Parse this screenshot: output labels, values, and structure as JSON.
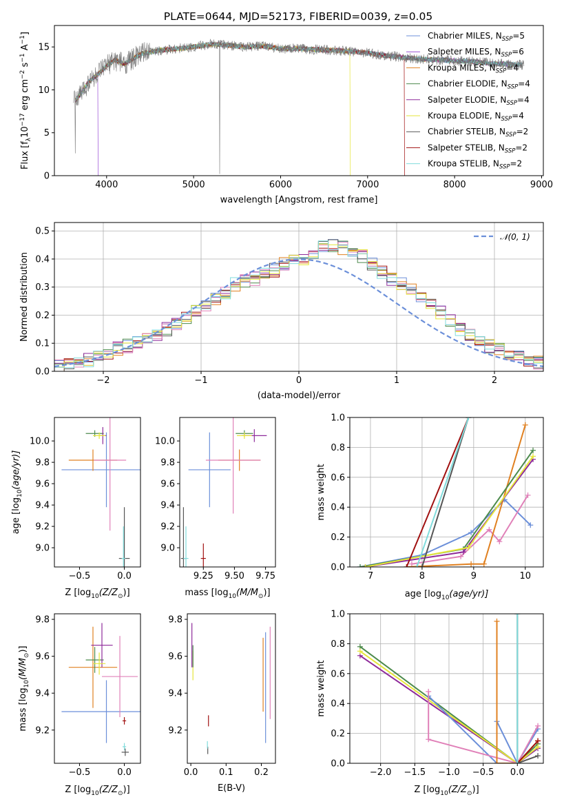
{
  "title": "PLATE=0644, MJD=52173, FIBERID=0039, z=0.05",
  "colors": {
    "Chabrier MILES": "#6b8fd9",
    "Salpeter MILES": "#9a4fd6",
    "Kroupa MILES": "#e08020",
    "Chabrier ELODIE": "#4c8a4c",
    "Salpeter ELODIE": "#8e2a9a",
    "Kroupa ELODIE": "#e6e63a",
    "Chabrier STELIB": "#555555",
    "Salpeter STELIB": "#a01010",
    "Kroupa STELIB": "#80dcdc",
    "pink": "#e080b8",
    "normal": "#6b8fd9"
  },
  "chart_data": [
    {
      "type": "line",
      "title": "PLATE=0644, MJD=52173, FIBERID=0039, z=0.05",
      "xlabel": "wavelength [Angstrom, rest frame]",
      "ylabel": "Flux [f",
      "ylabel_parts": [
        "Flux [f",
        "λ",
        "10",
        "−17",
        " erg cm",
        "−2",
        " s",
        "−1",
        " A",
        "−1",
        "]"
      ],
      "xlim": [
        3400,
        9020
      ],
      "ylim": [
        0,
        17.5
      ],
      "xticks": [
        4000,
        5000,
        6000,
        7000,
        8000,
        9000
      ],
      "yticks": [
        0,
        5,
        10,
        15
      ],
      "legend_position": "upper right",
      "legend": [
        {
          "name": "Chabrier MILES",
          "nssp": "5"
        },
        {
          "name": "Salpeter MILES",
          "nssp": "6"
        },
        {
          "name": "Kroupa MILES",
          "nssp": "4"
        },
        {
          "name": "Chabrier ELODIE",
          "nssp": "4"
        },
        {
          "name": "Salpeter ELODIE",
          "nssp": "4"
        },
        {
          "name": "Kroupa ELODIE",
          "nssp": "4"
        },
        {
          "name": "Chabrier STELIB",
          "nssp": "2"
        },
        {
          "name": "Salpeter STELIB",
          "nssp": "2"
        },
        {
          "name": "Kroupa STELIB",
          "nssp": "2"
        }
      ],
      "data_spectrum": {
        "x": [
          3620,
          3700,
          3800,
          3900,
          4000,
          4100,
          4200,
          4300,
          4400,
          4600,
          4800,
          5000,
          5200,
          5400,
          5600,
          5800,
          6000,
          6200,
          6400,
          6600,
          6800,
          7000,
          7200,
          7400,
          7600,
          7800,
          8000,
          8200,
          8400,
          8600,
          8800
        ],
        "y": [
          8.5,
          9.5,
          11.0,
          11.8,
          12.8,
          13.5,
          13.0,
          13.6,
          14.2,
          14.6,
          14.8,
          15.0,
          15.3,
          15.2,
          15.0,
          15.1,
          14.8,
          14.8,
          14.7,
          14.6,
          14.5,
          14.3,
          14.0,
          13.8,
          13.6,
          13.5,
          13.4,
          13.3,
          13.1,
          13.0,
          12.9
        ]
      },
      "model_cutoffs": [
        {
          "series": "Salpeter MILES",
          "x": 3900
        },
        {
          "series": "Kroupa ELODIE",
          "x": 6800
        },
        {
          "series": "Salpeter STELIB",
          "x": 7420
        }
      ]
    },
    {
      "type": "step",
      "xlabel": "(data-model)/error",
      "ylabel": "Normed distribution",
      "xlim": [
        -2.5,
        2.5
      ],
      "ylim": [
        0,
        0.53
      ],
      "xticks": [
        -2,
        -1,
        0,
        1,
        2
      ],
      "yticks": [
        0.0,
        0.1,
        0.2,
        0.3,
        0.4,
        0.5
      ],
      "grid": true,
      "legend": [
        "𝒩(0, 1)"
      ],
      "legend_position": "upper right",
      "bin_width": 0.1,
      "bins_start": -2.5,
      "histogram_base": [
        0.02,
        0.03,
        0.03,
        0.04,
        0.05,
        0.06,
        0.08,
        0.09,
        0.1,
        0.12,
        0.13,
        0.15,
        0.17,
        0.19,
        0.21,
        0.23,
        0.26,
        0.28,
        0.31,
        0.32,
        0.33,
        0.35,
        0.36,
        0.38,
        0.39,
        0.4,
        0.42,
        0.44,
        0.45,
        0.44,
        0.43,
        0.41,
        0.38,
        0.35,
        0.33,
        0.31,
        0.29,
        0.27,
        0.24,
        0.21,
        0.18,
        0.15,
        0.13,
        0.11,
        0.09,
        0.08,
        0.06,
        0.05,
        0.04,
        0.03
      ],
      "series_colors": [
        "#6b8fd9",
        "#e08020",
        "#4c8a4c",
        "#a01010",
        "#8e2a9a",
        "#555555",
        "#e080b8",
        "#e6e63a",
        "#80dcdc"
      ]
    },
    {
      "type": "errorbar",
      "xlabel": "Z [log",
      "xlabel_parts": [
        "Z [log",
        "10",
        "(Z/Z",
        "⊙",
        ")]"
      ],
      "ylabel_parts": [
        "age  [log",
        "10",
        "(age/yr)]"
      ],
      "xlim": [
        -0.78,
        0.18
      ],
      "ylim": [
        8.82,
        10.22
      ],
      "xticks": [
        -0.5,
        0.0
      ],
      "yticks": [
        9.0,
        9.2,
        9.4,
        9.6,
        9.8,
        10.0
      ],
      "points": [
        {
          "c": "#6b8fd9",
          "x": -0.2,
          "y": 9.73,
          "xe": 0.5,
          "ye": 0.35
        },
        {
          "c": "#e08020",
          "x": -0.35,
          "y": 9.82,
          "xe": 0.27,
          "ye": 0.1
        },
        {
          "c": "#e080b8",
          "x": -0.16,
          "y": 9.82,
          "xe": 0.18,
          "ye": 0.66
        },
        {
          "c": "#4c8a4c",
          "x": -0.33,
          "y": 10.07,
          "xe": 0.1,
          "ye": 0.03
        },
        {
          "c": "#8e2a9a",
          "x": -0.24,
          "y": 10.05,
          "xe": 0.04,
          "ye": 0.08
        },
        {
          "c": "#e6e63a",
          "x": -0.28,
          "y": 10.05,
          "xe": 0.07,
          "ye": 0.03
        },
        {
          "c": "#555555",
          "x": 0.0,
          "y": 8.9,
          "xe": 0.06,
          "ye": 0.48
        },
        {
          "c": "#80dcdc",
          "x": -0.01,
          "y": 8.9,
          "xe": 0.02,
          "ye": 0.3
        }
      ]
    },
    {
      "type": "errorbar",
      "xlabel_parts": [
        "mass [log",
        "10",
        "(M/M",
        "⊙",
        ")]"
      ],
      "xlim": [
        9.06,
        9.83
      ],
      "ylim": [
        8.82,
        10.22
      ],
      "xticks": [
        9.25,
        9.5,
        9.75
      ],
      "xticklabels": [
        "9.25",
        "9.50",
        "9.75"
      ],
      "yticks": [
        9.0,
        9.2,
        9.4,
        9.6,
        9.8,
        10.0
      ],
      "points": [
        {
          "c": "#6b8fd9",
          "x": 9.3,
          "y": 9.73,
          "xe": 0.17,
          "ye": 0.35
        },
        {
          "c": "#e08020",
          "x": 9.54,
          "y": 9.82,
          "xe": 0.17,
          "ye": 0.1
        },
        {
          "c": "#e080b8",
          "x": 9.49,
          "y": 9.82,
          "xe": 0.22,
          "ye": 0.5
        },
        {
          "c": "#4c8a4c",
          "x": 9.58,
          "y": 10.07,
          "xe": 0.07,
          "ye": 0.03
        },
        {
          "c": "#8e2a9a",
          "x": 9.66,
          "y": 10.05,
          "xe": 0.1,
          "ye": 0.06
        },
        {
          "c": "#e6e63a",
          "x": 9.58,
          "y": 10.05,
          "xe": 0.06,
          "ye": 0.03
        },
        {
          "c": "#555555",
          "x": 9.09,
          "y": 8.9,
          "xe": 0.02,
          "ye": 0.48
        },
        {
          "c": "#80dcdc",
          "x": 9.11,
          "y": 8.9,
          "xe": 0.02,
          "ye": 0.3
        },
        {
          "c": "#a01010",
          "x": 9.25,
          "y": 8.9,
          "xe": 0.02,
          "ye": 0.14
        }
      ]
    },
    {
      "type": "line",
      "xlabel_parts": [
        "age  [log",
        "10",
        "(age/yr)]"
      ],
      "ylabel": "mass weight",
      "xlim": [
        6.6,
        10.35
      ],
      "ylim": [
        0,
        1
      ],
      "xticks": [
        7,
        8,
        9,
        10
      ],
      "yticks": [
        0.0,
        0.2,
        0.4,
        0.6,
        0.8,
        1.0
      ],
      "grid": true,
      "series": [
        {
          "c": "#6b8fd9",
          "x": [
            6.8,
            8.0,
            8.95,
            9.6,
            10.1
          ],
          "y": [
            0.0,
            0.08,
            0.23,
            0.45,
            0.28
          ]
        },
        {
          "c": "#e080b8",
          "x": [
            7.8,
            8.75,
            9.3,
            9.5,
            10.05
          ],
          "y": [
            0.02,
            0.07,
            0.25,
            0.17,
            0.48
          ]
        },
        {
          "c": "#e08020",
          "x": [
            7.7,
            8.95,
            9.2,
            10.0
          ],
          "y": [
            0.0,
            0.02,
            0.02,
            0.95
          ]
        },
        {
          "c": "#4c8a4c",
          "x": [
            6.8,
            8.8,
            10.15
          ],
          "y": [
            0.0,
            0.12,
            0.78
          ]
        },
        {
          "c": "#8e2a9a",
          "x": [
            6.9,
            8.8,
            10.15
          ],
          "y": [
            0.0,
            0.1,
            0.72
          ]
        },
        {
          "c": "#e6e63a",
          "x": [
            6.9,
            8.9,
            10.15
          ],
          "y": [
            0.0,
            0.13,
            0.74
          ]
        },
        {
          "c": "#a01010",
          "x": [
            7.7,
            8.9
          ],
          "y": [
            0.0,
            1.0
          ]
        },
        {
          "c": "#555555",
          "x": [
            8.0,
            8.9
          ],
          "y": [
            0.0,
            1.0
          ]
        },
        {
          "c": "#80dcdc",
          "x": [
            7.9,
            8.9
          ],
          "y": [
            0.0,
            1.0
          ]
        }
      ]
    },
    {
      "type": "errorbar",
      "xlabel_parts": [
        "Z [log",
        "10",
        "(Z/Z",
        "⊙",
        ")]"
      ],
      "ylabel_parts": [
        "mass [log",
        "10",
        "(M/M",
        "⊙",
        ")]"
      ],
      "xlim": [
        -0.78,
        0.18
      ],
      "ylim": [
        9.02,
        9.83
      ],
      "xticks": [
        -0.5,
        0.0
      ],
      "yticks": [
        9.2,
        9.4,
        9.6,
        9.8
      ],
      "points": [
        {
          "c": "#6b8fd9",
          "x": -0.2,
          "y": 9.3,
          "xe": 0.5,
          "ye": 0.17
        },
        {
          "c": "#e08020",
          "x": -0.35,
          "y": 9.54,
          "xe": 0.27,
          "ye": 0.22
        },
        {
          "c": "#e080b8",
          "x": -0.05,
          "y": 9.49,
          "xe": 0.2,
          "ye": 0.22
        },
        {
          "c": "#4c8a4c",
          "x": -0.33,
          "y": 9.58,
          "xe": 0.1,
          "ye": 0.07
        },
        {
          "c": "#8e2a9a",
          "x": -0.25,
          "y": 9.66,
          "xe": 0.12,
          "ye": 0.12
        },
        {
          "c": "#e6e63a",
          "x": -0.28,
          "y": 9.56,
          "xe": 0.07,
          "ye": 0.06
        },
        {
          "c": "#555555",
          "x": 0.01,
          "y": 9.08,
          "xe": 0.04,
          "ye": 0.02
        },
        {
          "c": "#80dcdc",
          "x": 0.0,
          "y": 9.11,
          "xe": 0.02,
          "ye": 0.02
        },
        {
          "c": "#a01010",
          "x": 0.0,
          "y": 9.25,
          "xe": 0.02,
          "ye": 0.02
        }
      ]
    },
    {
      "type": "errorbar",
      "xlabel": "E(B-V)",
      "xlim": [
        -0.01,
        0.24
      ],
      "ylim": [
        9.02,
        9.83
      ],
      "xticks": [
        0.0,
        0.1,
        0.2
      ],
      "yticks": [
        9.2,
        9.4,
        9.6,
        9.8
      ],
      "points": [
        {
          "c": "#6b8fd9",
          "x": 0.212,
          "y": 9.43,
          "xe": 0.0,
          "ye": 0.3
        },
        {
          "c": "#e08020",
          "x": 0.205,
          "y": 9.5,
          "xe": 0.0,
          "ye": 0.2
        },
        {
          "c": "#e080b8",
          "x": 0.225,
          "y": 9.51,
          "xe": 0.0,
          "ye": 0.25
        },
        {
          "c": "#8e2a9a",
          "x": 0.003,
          "y": 9.66,
          "xe": 0.0,
          "ye": 0.12
        },
        {
          "c": "#e6e63a",
          "x": 0.006,
          "y": 9.55,
          "xe": 0.0,
          "ye": 0.08
        },
        {
          "c": "#4c8a4c",
          "x": 0.006,
          "y": 9.6,
          "xe": 0.0,
          "ye": 0.06
        },
        {
          "c": "#a01010",
          "x": 0.05,
          "y": 9.25,
          "xe": 0.0,
          "ye": 0.03
        },
        {
          "c": "#555555",
          "x": 0.048,
          "y": 9.09,
          "xe": 0.0,
          "ye": 0.02
        },
        {
          "c": "#80dcdc",
          "x": 0.047,
          "y": 9.12,
          "xe": 0.0,
          "ye": 0.02
        }
      ]
    },
    {
      "type": "line",
      "xlabel_parts": [
        "Z [log",
        "10",
        "(Z/Z",
        "⊙",
        ")]"
      ],
      "ylabel": "mass weight",
      "xlim": [
        -2.45,
        0.38
      ],
      "ylim": [
        0,
        1
      ],
      "xticks": [
        -2.0,
        -1.5,
        -1.0,
        -0.5,
        0.0
      ],
      "yticks": [
        0.0,
        0.2,
        0.4,
        0.6,
        0.8,
        1.0
      ],
      "grid": true,
      "series": [
        {
          "c": "#4c8a4c",
          "x": [
            -2.3,
            0.0,
            0.3
          ],
          "y": [
            0.78,
            0.0,
            0.13
          ]
        },
        {
          "c": "#8e2a9a",
          "x": [
            -2.3,
            0.0,
            0.3
          ],
          "y": [
            0.72,
            0.0,
            0.1
          ]
        },
        {
          "c": "#e6e63a",
          "x": [
            -2.3,
            0.0,
            0.3
          ],
          "y": [
            0.75,
            0.0,
            0.11
          ]
        },
        {
          "c": "#6b8fd9",
          "x": [
            -1.3,
            -0.3,
            -0.3,
            0.0,
            0.3
          ],
          "y": [
            0.45,
            0.0,
            0.28,
            0.0,
            0.23
          ]
        },
        {
          "c": "#e080b8",
          "x": [
            -1.3,
            -1.3,
            0.0,
            0.3
          ],
          "y": [
            0.48,
            0.16,
            0.0,
            0.25
          ]
        },
        {
          "c": "#e08020",
          "x": [
            -0.3,
            -0.3,
            0.0,
            0.3
          ],
          "y": [
            0.95,
            0.0,
            0.0,
            0.15
          ]
        },
        {
          "c": "#a01010",
          "x": [
            0.0,
            0.3
          ],
          "y": [
            0.0,
            0.15
          ]
        },
        {
          "c": "#555555",
          "x": [
            0.0,
            0.0,
            0.3
          ],
          "y": [
            1.0,
            0.0,
            0.05
          ]
        },
        {
          "c": "#80dcdc",
          "x": [
            0.0,
            0.0
          ],
          "y": [
            0.0,
            1.0
          ]
        }
      ]
    }
  ]
}
